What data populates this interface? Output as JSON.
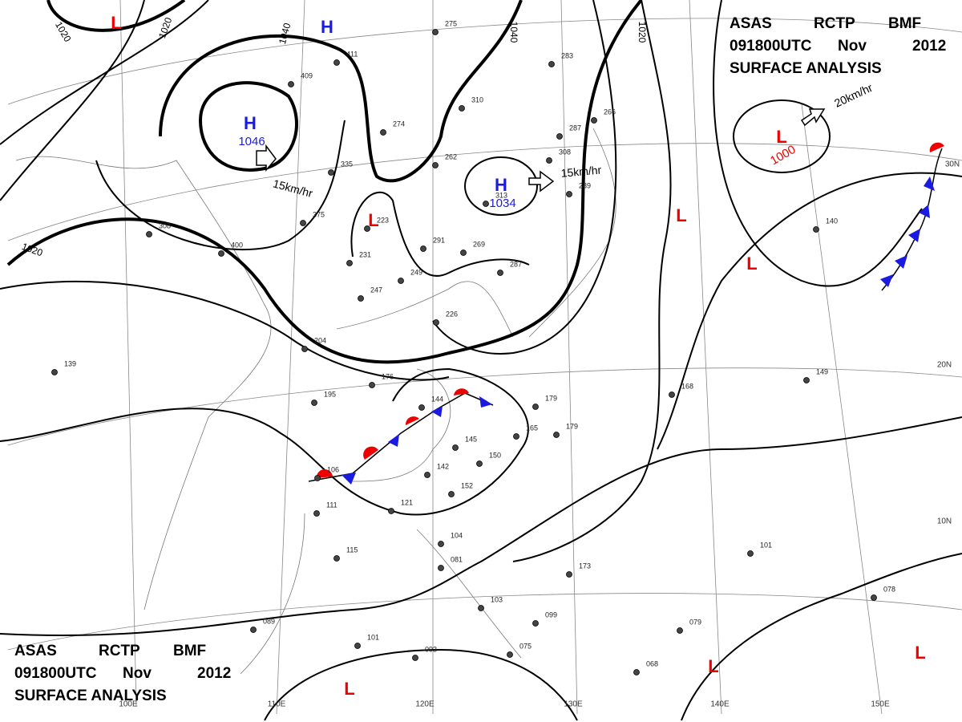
{
  "header": {
    "agency": "ASAS",
    "station": "RCTP",
    "code": "BMF",
    "time": "091800UTC",
    "month": "Nov",
    "year": "2012",
    "product": "SURFACE ANALYSIS"
  },
  "pressure_centers": [
    {
      "symbol": "H",
      "pressure": "1046"
    },
    {
      "symbol": "H",
      "pressure": "1034"
    },
    {
      "symbol": "H"
    },
    {
      "symbol": "L"
    },
    {
      "symbol": "L"
    },
    {
      "symbol": "L",
      "pressure": "1000"
    },
    {
      "symbol": "L"
    },
    {
      "symbol": "L"
    },
    {
      "symbol": "L"
    },
    {
      "symbol": "L"
    },
    {
      "symbol": "L"
    }
  ],
  "isobar_labels": [
    "1020",
    "1020",
    "1040",
    "1040",
    "1020",
    "1020"
  ],
  "motion_labels": [
    "15km/hr",
    "15km/hr",
    "20km/hr"
  ],
  "latitude_labels": [
    "30N",
    "20N",
    "10N"
  ],
  "longitude_labels": [
    "100E",
    "110E",
    "120E",
    "130E",
    "140E",
    "150E"
  ],
  "stations": [
    "275",
    "411",
    "409",
    "310",
    "274",
    "262",
    "308",
    "287",
    "283",
    "266",
    "335",
    "313",
    "289",
    "375",
    "223",
    "291",
    "269",
    "231",
    "249",
    "287",
    "247",
    "226",
    "204",
    "176",
    "195",
    "144",
    "179",
    "165",
    "179",
    "145",
    "150",
    "142",
    "152",
    "106",
    "111",
    "121",
    "115",
    "104",
    "081",
    "089",
    "101",
    "093",
    "103",
    "099",
    "075",
    "173",
    "168",
    "149",
    "101",
    "078",
    "079",
    "068",
    "139",
    "400",
    "308",
    "140"
  ]
}
